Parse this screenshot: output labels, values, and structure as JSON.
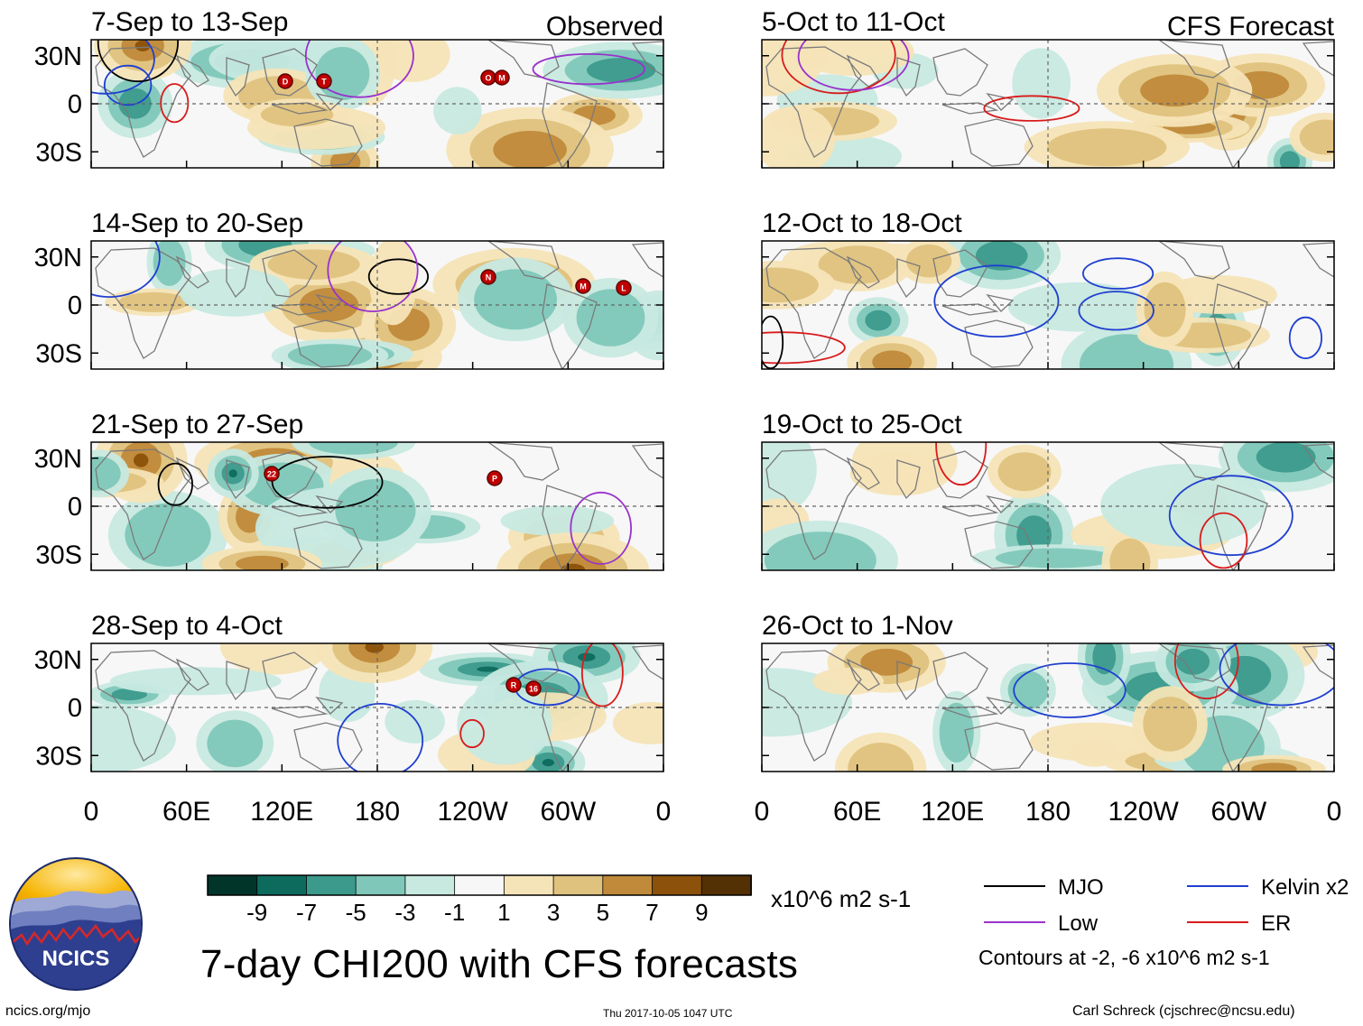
{
  "figure": {
    "title": "7-day CHI200 with CFS forecasts",
    "source_url": "ncics.org/mjo",
    "timestamp": "Thu 2017-10-05 1047 UTC",
    "author": "Carl Schreck (cjschrec@ncsu.edu)",
    "logo_text": "NCICS"
  },
  "chart_data": {
    "type": "heatmap",
    "variable": "CHI200",
    "units": "x10^6 m2 s-1",
    "colorbar": {
      "levels": [
        -9,
        -7,
        -5,
        -3,
        -1,
        1,
        3,
        5,
        7,
        9
      ],
      "labels": [
        "-9",
        "-7",
        "-5",
        "-3",
        "-1",
        "1",
        "3",
        "5",
        "7",
        "9"
      ],
      "colors": [
        "#01352a",
        "#0d6b5e",
        "#3c9a8c",
        "#7fc8b9",
        "#c7e9e0",
        "#f7f7f7",
        "#f5e4b7",
        "#dfc27d",
        "#c08a3a",
        "#8c510a",
        "#543005"
      ]
    },
    "xticks": [
      "0",
      "60E",
      "120E",
      "180",
      "120W",
      "60W",
      "0"
    ],
    "yticks": [
      "30N",
      "0",
      "30S"
    ],
    "contours": {
      "note": "Contours at -2, -6 x10^6 m2 s-1",
      "legend": [
        {
          "name": "MJO",
          "color": "#000000"
        },
        {
          "name": "Kelvin x2",
          "color": "#1f3fd0"
        },
        {
          "name": "Low",
          "color": "#9932cc"
        },
        {
          "name": "ER",
          "color": "#d81b1b"
        }
      ]
    },
    "columns": [
      {
        "header": "Observed",
        "panels": [
          {
            "period": "7-Sep to 13-Sep",
            "storms": [
              "D",
              "T",
              "O",
              "M"
            ]
          },
          {
            "period": "14-Sep to 20-Sep",
            "storms": [
              "N",
              "M",
              "L"
            ]
          },
          {
            "period": "21-Sep to 27-Sep",
            "storms": [
              "22",
              "P"
            ]
          },
          {
            "period": "28-Sep to 4-Oct",
            "storms": [
              "R",
              "16"
            ]
          }
        ]
      },
      {
        "header": "CFS Forecast",
        "panels": [
          {
            "period": "5-Oct to 11-Oct",
            "storms": []
          },
          {
            "period": "12-Oct to 18-Oct",
            "storms": []
          },
          {
            "period": "19-Oct to 25-Oct",
            "storms": []
          },
          {
            "period": "26-Oct to 1-Nov",
            "storms": []
          }
        ]
      }
    ]
  }
}
